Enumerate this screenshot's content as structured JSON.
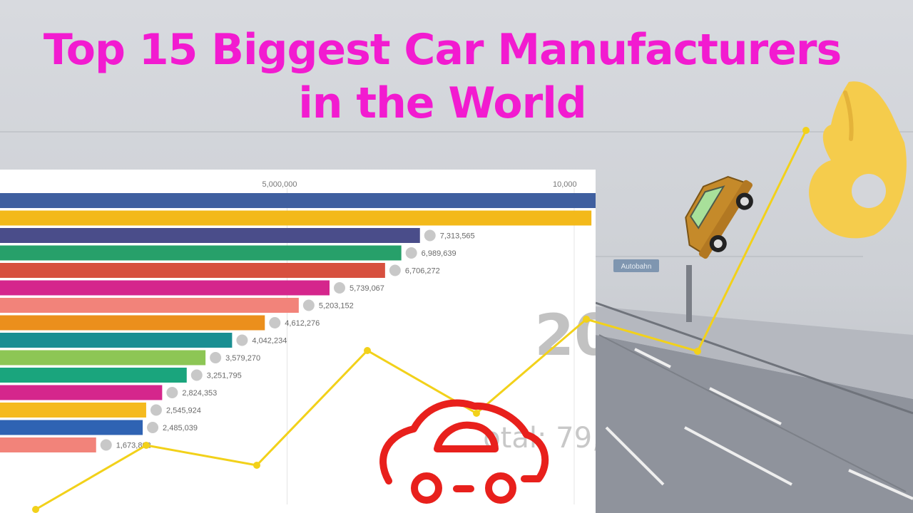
{
  "header": {
    "title_line1": "Top 15 Biggest Car Manufacturers",
    "title_line2": "in the World"
  },
  "road_sign": {
    "text": "Autobahn"
  },
  "race_panel": {
    "year_watermark": "20",
    "total_watermark": "otal: 79,"
  },
  "chart_data": {
    "type": "bar",
    "orientation": "horizontal",
    "x_ticks": [
      "5,000,000",
      "10,000"
    ],
    "xlim": [
      0,
      10000000
    ],
    "series": [
      {
        "values": [
          10500000,
          10300000,
          7313565,
          6989639,
          6706272,
          5739067,
          5203152,
          4612276,
          4042234,
          3579270,
          3251795,
          2824353,
          2545924,
          2485039,
          1673802
        ],
        "colors": [
          "#3f5f9f",
          "#f3b91a",
          "#4a4d8a",
          "#27a06a",
          "#d7503f",
          "#d5268c",
          "#f2837a",
          "#eb8f1c",
          "#1a8f92",
          "#8dc655",
          "#1aa57d",
          "#d5268c",
          "#f5ba1f",
          "#2f63b3",
          "#f2837a"
        ],
        "value_labels": [
          "",
          "",
          "7,313,565",
          "6,989,639",
          "6,706,272",
          "5,739,067",
          "5,203,152",
          "4,612,276",
          "4,042,234",
          "3,579,270",
          "3,251,795",
          "2,824,353",
          "2,545,924",
          "2,485,039",
          "1,673,802"
        ]
      }
    ],
    "trend_line": {
      "color": "#f2d11a",
      "points": [
        [
          50,
          715
        ],
        [
          205,
          625
        ],
        [
          360,
          653
        ],
        [
          515,
          492
        ],
        [
          668,
          580
        ],
        [
          822,
          448
        ],
        [
          978,
          493
        ],
        [
          1130,
          183
        ]
      ]
    }
  },
  "colors": {
    "title": "#f21bd0",
    "car_icon": "#e8201c",
    "ok_hand": "#f5cc4c",
    "toy_car_body": "#c58a2a"
  },
  "icons": [
    "red-car-outline-icon",
    "ok-hand-icon",
    "toy-car-icon",
    "bmw-logo-icon"
  ]
}
